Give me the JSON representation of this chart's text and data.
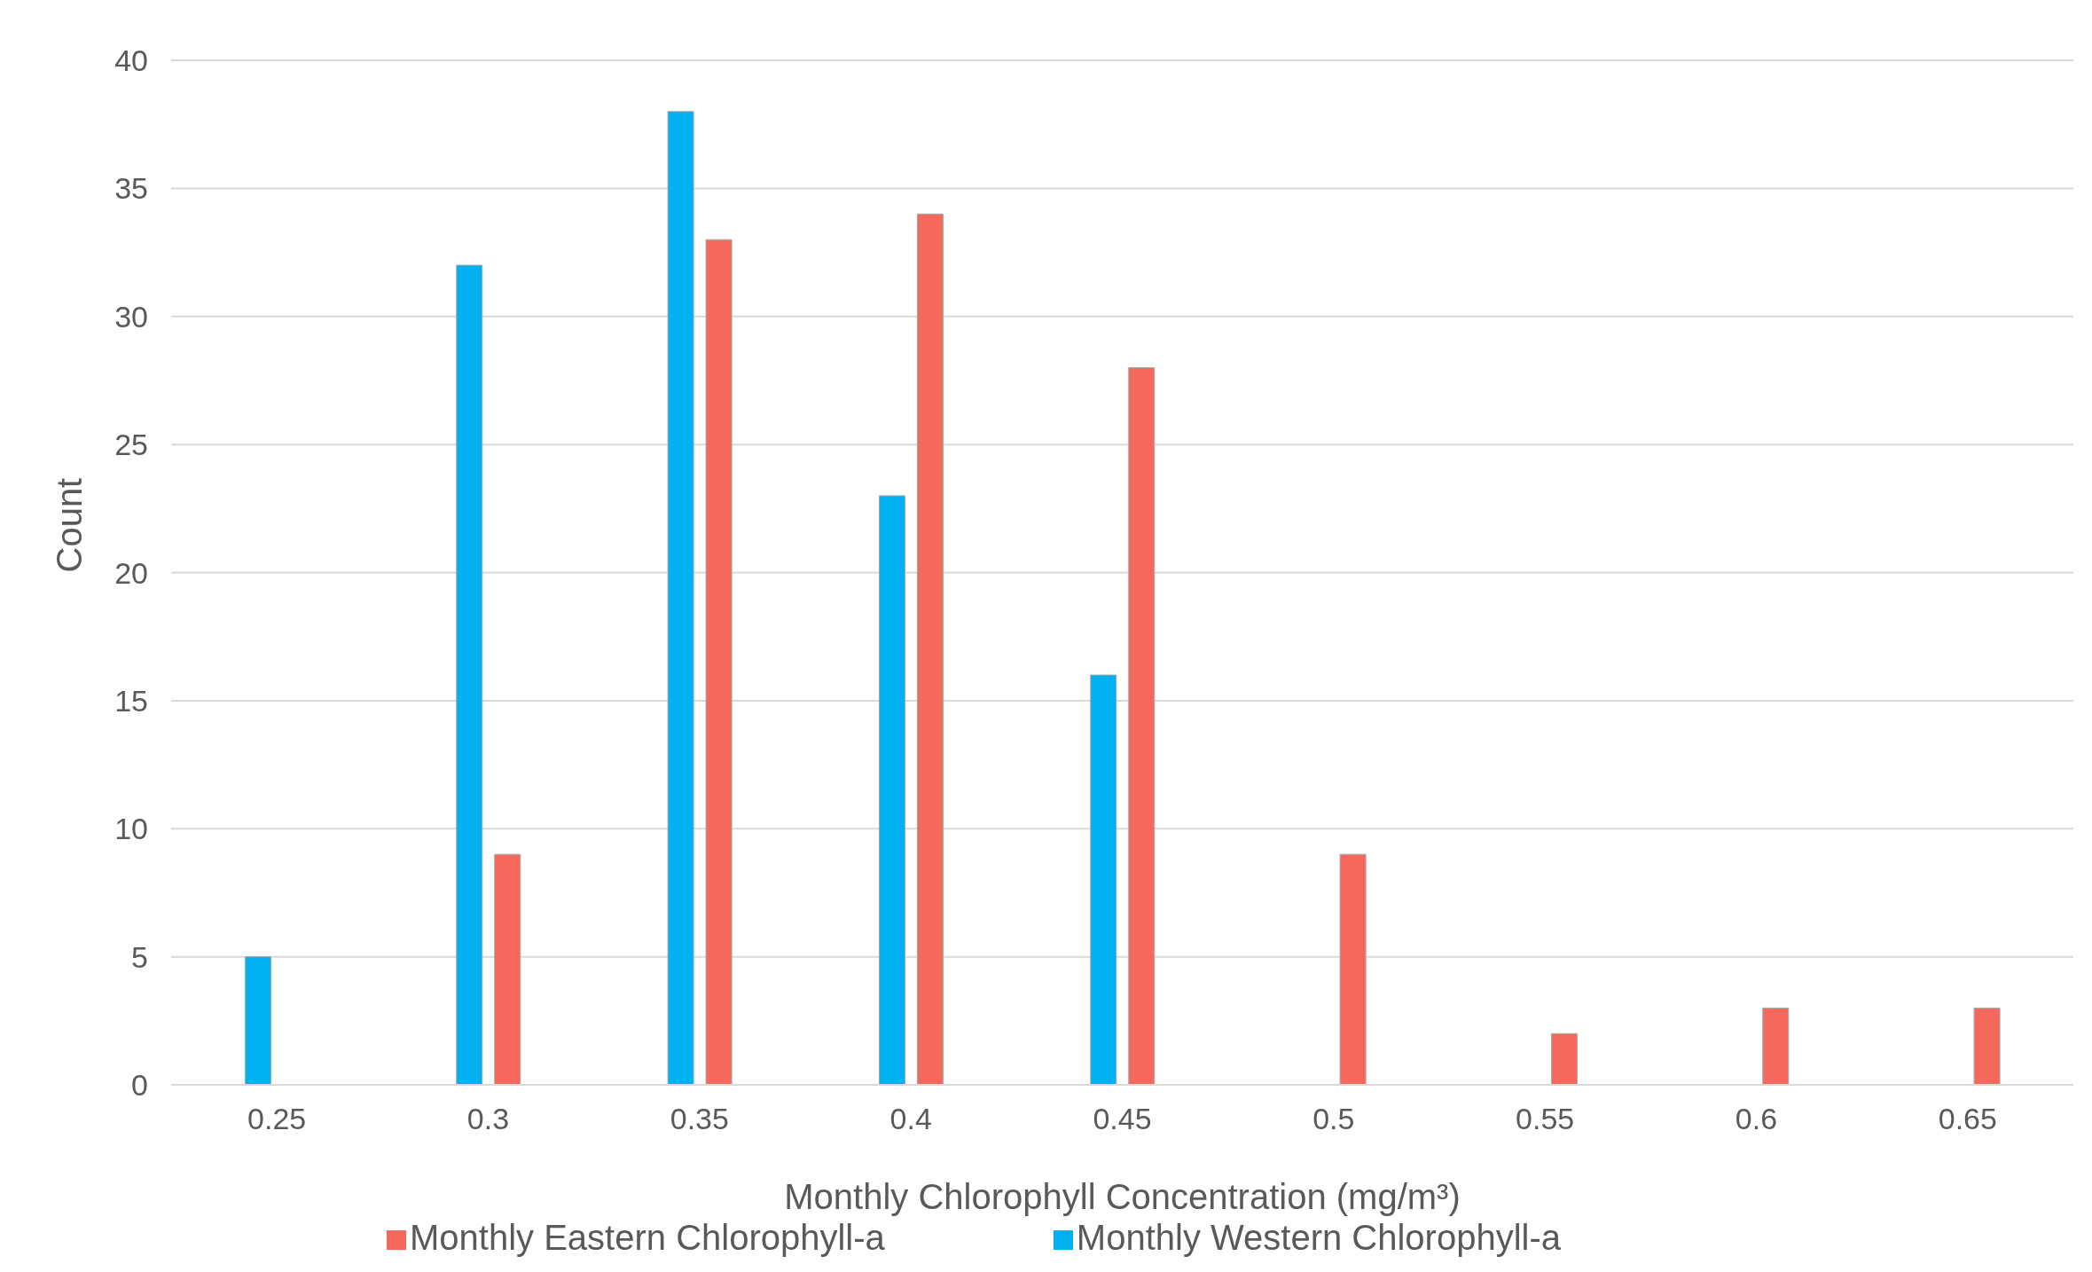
{
  "chart_data": {
    "type": "bar",
    "xlabel": "Monthly Chlorophyll Concentration (mg/m³)",
    "ylabel": "Count",
    "categories": [
      "0.25",
      "0.3",
      "0.35",
      "0.4",
      "0.45",
      "0.5",
      "0.55",
      "0.6",
      "0.65"
    ],
    "series": [
      {
        "name": "Monthly Western Chlorophyll-a",
        "color": "#00b0f0",
        "values": [
          5,
          32,
          38,
          23,
          16,
          0,
          0,
          0,
          0
        ]
      },
      {
        "name": "Monthly Eastern Chlorophyll-a",
        "color": "#f4695c",
        "values": [
          0,
          9,
          33,
          34,
          28,
          9,
          2,
          3,
          3
        ]
      }
    ],
    "ylim": [
      0,
      40
    ],
    "yticks": [
      0,
      5,
      10,
      15,
      20,
      25,
      30,
      35,
      40
    ],
    "grid": "y",
    "legend": "bottom"
  }
}
